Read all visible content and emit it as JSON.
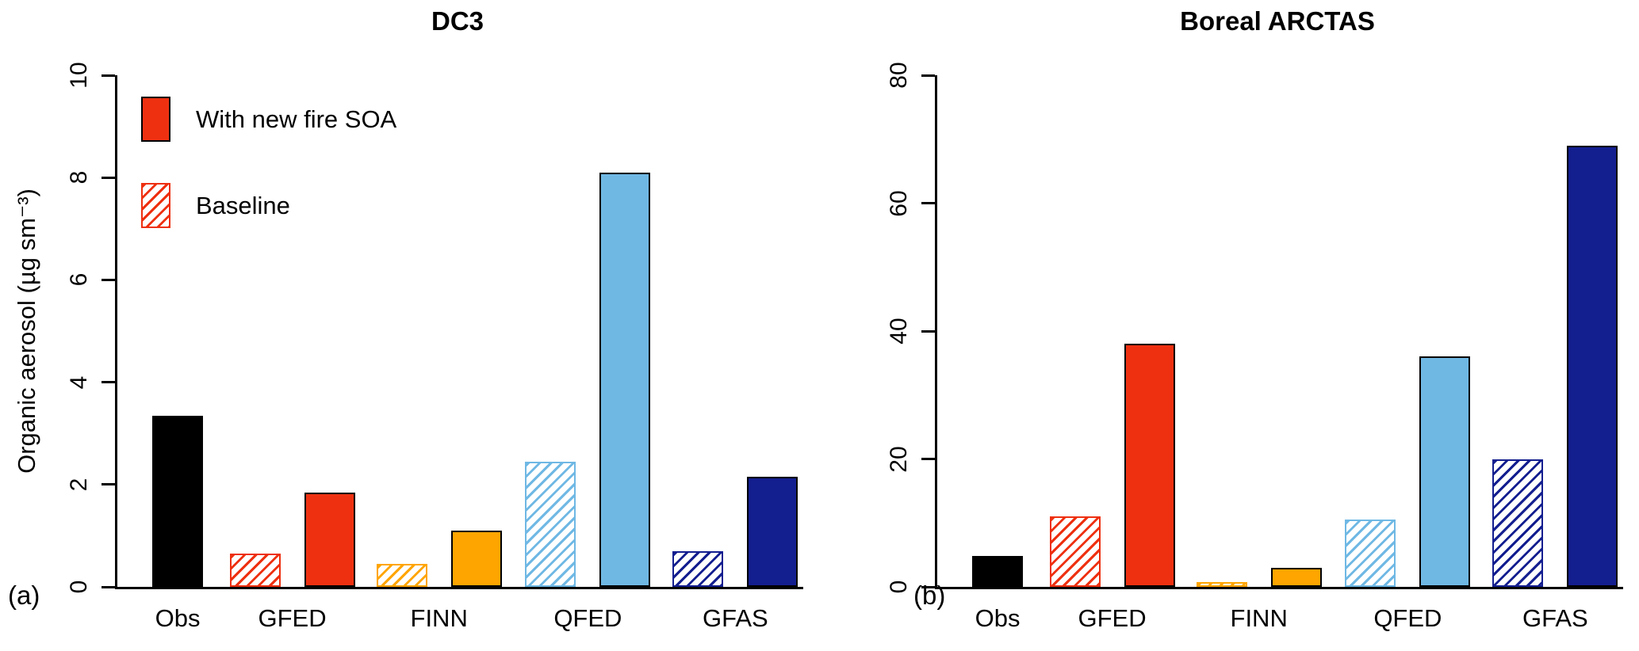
{
  "figure": {
    "panel_a_label": "(a)",
    "panel_b_label": "(b)",
    "legend": [
      {
        "label": "With new fire SOA",
        "style": "solid",
        "color": "#EE3010"
      },
      {
        "label": "Baseline",
        "style": "hatched",
        "color": "#EE3010"
      }
    ]
  },
  "chart_data": [
    {
      "type": "bar",
      "panel": "a",
      "title": "DC3",
      "ylabel": "Organic aerosol (µg sm⁻³)",
      "ylim": [
        0,
        10
      ],
      "yticks": [
        0,
        2,
        4,
        6,
        8,
        10
      ],
      "grid": false,
      "legend_position": "upper-left",
      "categories": [
        "Obs",
        "GFED",
        "FINN",
        "QFED",
        "GFAS"
      ],
      "series": [
        {
          "name": "Baseline",
          "style": "hatched",
          "values": [
            null,
            0.65,
            0.45,
            2.45,
            0.7
          ]
        },
        {
          "name": "With new fire SOA",
          "style": "solid",
          "values": [
            3.35,
            1.85,
            1.1,
            8.1,
            2.15
          ]
        }
      ],
      "colors": {
        "Obs": "#000000",
        "GFED": "#EE3010",
        "FINN": "#FFA500",
        "QFED": "#6FB8E4",
        "GFAS": "#131E8F"
      }
    },
    {
      "type": "bar",
      "panel": "b",
      "title": "Boreal ARCTAS",
      "ylabel": "",
      "ylim": [
        0,
        80
      ],
      "yticks": [
        0,
        20,
        40,
        60,
        80
      ],
      "grid": false,
      "legend_position": "none",
      "categories": [
        "Obs",
        "GFED",
        "FINN",
        "QFED",
        "GFAS"
      ],
      "series": [
        {
          "name": "Baseline",
          "style": "hatched",
          "values": [
            null,
            11,
            0.8,
            10.5,
            20
          ]
        },
        {
          "name": "With new fire SOA",
          "style": "solid",
          "values": [
            4.8,
            38,
            3,
            36,
            69
          ]
        }
      ],
      "colors": {
        "Obs": "#000000",
        "GFED": "#EE3010",
        "FINN": "#FFA500",
        "QFED": "#6FB8E4",
        "GFAS": "#131E8F"
      }
    }
  ]
}
